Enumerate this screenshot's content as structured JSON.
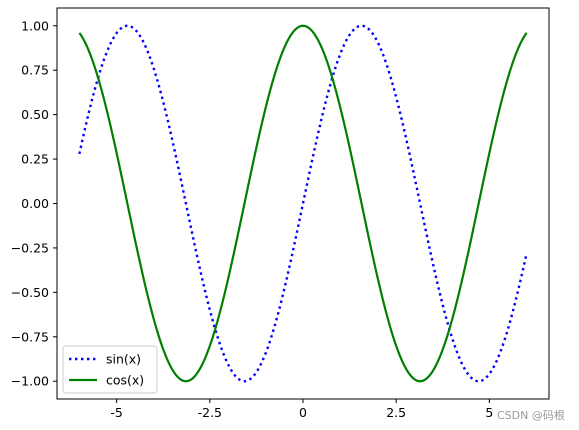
{
  "chart_data": {
    "type": "line",
    "title": "",
    "xlabel": "",
    "ylabel": "",
    "xlim": [
      -6.6,
      6.6
    ],
    "ylim": [
      -1.1,
      1.1
    ],
    "x_range": [
      -6.0,
      6.0
    ],
    "xticks": [
      -5,
      -2.5,
      0,
      2.5,
      5
    ],
    "xtick_labels": [
      "-5",
      "-2.5",
      "0",
      "2.5",
      "5"
    ],
    "yticks": [
      1.0,
      0.75,
      0.5,
      0.25,
      0.0,
      -0.25,
      -0.5,
      -0.75,
      -1.0
    ],
    "ytick_labels": [
      "1.00",
      "0.75",
      "0.50",
      "0.25",
      "0.00",
      "−0.25",
      "−0.50",
      "−0.75",
      "−1.00"
    ],
    "grid": false,
    "legend_position": "lower-left",
    "series": [
      {
        "name": "sin(x)",
        "function": "sin",
        "color": "#0000ff",
        "style": "dotted"
      },
      {
        "name": "cos(x)",
        "function": "cos",
        "color": "#008000",
        "style": "solid"
      }
    ]
  },
  "watermark": "CSDN @码根"
}
